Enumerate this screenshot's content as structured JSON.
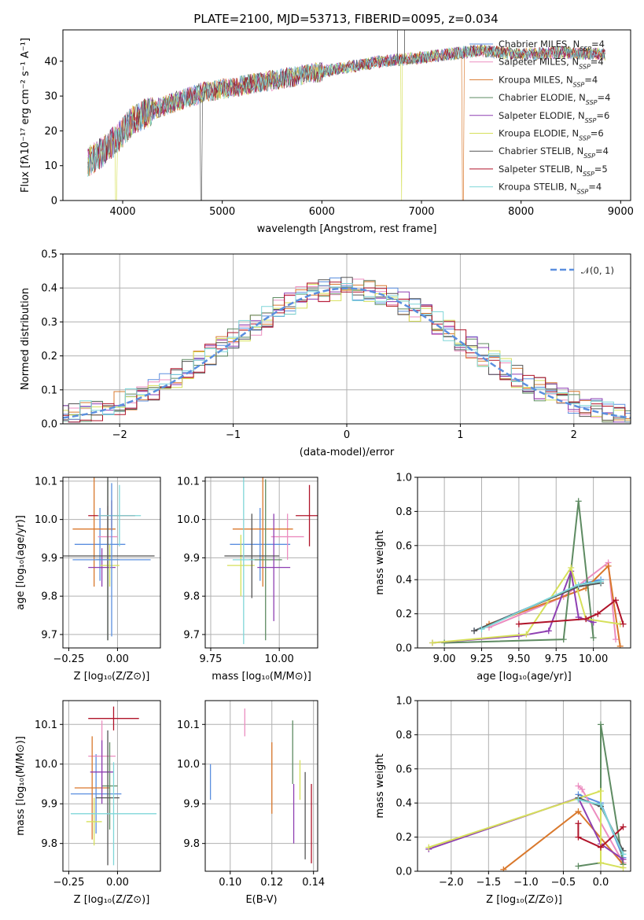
{
  "figure": {
    "title": "PLATE=2100, MJD=53713, FIBERID=0095, z=0.034"
  },
  "series_names": [
    {
      "name": "Chabrier MILES, N",
      "sub": "SSP",
      "eq": "=4",
      "color": "#5b8fdf"
    },
    {
      "name": "Salpeter MILES, N",
      "sub": "SSP",
      "eq": "=4",
      "color": "#ec8dc0"
    },
    {
      "name": "Kroupa MILES, N",
      "sub": "SSP",
      "eq": "=4",
      "color": "#d9782c"
    },
    {
      "name": "Chabrier ELODIE, N",
      "sub": "SSP",
      "eq": "=4",
      "color": "#5e8b62"
    },
    {
      "name": "Salpeter ELODIE, N",
      "sub": "SSP",
      "eq": "=6",
      "color": "#8e3fb2"
    },
    {
      "name": "Kroupa ELODIE, N",
      "sub": "SSP",
      "eq": "=6",
      "color": "#d6e05a"
    },
    {
      "name": "Chabrier STELIB, N",
      "sub": "SSP",
      "eq": "=4",
      "color": "#555555"
    },
    {
      "name": "Salpeter STELIB, N",
      "sub": "SSP",
      "eq": "=5",
      "color": "#b0142a"
    },
    {
      "name": "Kroupa STELIB, N",
      "sub": "SSP",
      "eq": "=4",
      "color": "#7fd6d8"
    }
  ],
  "chart_data": [
    {
      "id": "spectrum",
      "type": "line",
      "xlabel": "wavelength [Angstrom, rest frame]",
      "ylabel": "Flux [fλ10⁻¹⁷ erg cm⁻² s⁻¹ A⁻¹]",
      "xlim": [
        3400,
        9100
      ],
      "ylim": [
        0,
        49
      ],
      "xticks": [
        4000,
        5000,
        6000,
        7000,
        8000,
        9000
      ],
      "yticks": [
        0,
        10,
        20,
        30,
        40
      ],
      "continuum": [
        [
          3650,
          11
        ],
        [
          3800,
          14
        ],
        [
          3950,
          18
        ],
        [
          4100,
          23
        ],
        [
          4300,
          26
        ],
        [
          4500,
          28
        ],
        [
          4800,
          31
        ],
        [
          5000,
          32
        ],
        [
          5400,
          34
        ],
        [
          5800,
          36
        ],
        [
          6200,
          38
        ],
        [
          6600,
          40
        ],
        [
          7000,
          41
        ],
        [
          7400,
          42.5
        ],
        [
          7600,
          43
        ],
        [
          8000,
          42
        ],
        [
          8400,
          42.5
        ],
        [
          8800,
          42
        ]
      ],
      "dropouts": [
        [
          3930,
          "Kroupa ELODIE"
        ],
        [
          4790,
          "Chabrier STELIB"
        ],
        [
          6800,
          "Kroupa ELODIE"
        ],
        [
          7420,
          "Kroupa MILES"
        ]
      ],
      "legend": "right"
    },
    {
      "id": "residuals",
      "type": "histogram",
      "xlabel": "(data-model)/error",
      "ylabel": "Normed distribution",
      "xlim": [
        -2.5,
        2.5
      ],
      "ylim": [
        0,
        0.5
      ],
      "xticks": [
        -2,
        -1,
        0,
        1,
        2
      ],
      "yticks": [
        0.0,
        0.1,
        0.2,
        0.3,
        0.4,
        0.5
      ],
      "bin_width": 0.1,
      "reference": {
        "label": "𝒩(0, 1)",
        "mean": 0,
        "sigma": 1,
        "color": "#5b8fdf"
      },
      "legend": "upper-right"
    },
    {
      "id": "age_vs_Z",
      "type": "scatter",
      "xlabel": "Z [log₁₀(Z/Z⊙)]",
      "ylabel": "age  [log₁₀(age/yr)]",
      "xlim": [
        -0.28,
        0.22
      ],
      "ylim": [
        9.665,
        10.11
      ],
      "xticks": [
        -0.25,
        0.0
      ],
      "xtick_labels": [
        "−0.25",
        "0.00"
      ],
      "yticks": [
        9.7,
        9.8,
        9.9,
        10.0,
        10.1
      ],
      "points": [
        {
          "x": -0.09,
          "y": 9.935,
          "xerr": 0.13,
          "yerr": 0.095
        },
        {
          "x": -0.05,
          "y": 9.955,
          "xerr": 0.05,
          "yerr": 0.08
        },
        {
          "x": -0.12,
          "y": 9.975,
          "xerr": 0.11,
          "yerr": 0.15
        },
        {
          "x": -0.05,
          "y": 9.895,
          "xerr": 0.06,
          "yerr": 0.21
        },
        {
          "x": -0.08,
          "y": 9.875,
          "xerr": 0.07,
          "yerr": 0.05
        },
        {
          "x": -0.04,
          "y": 9.88,
          "xerr": 0.05,
          "yerr": 0.055
        },
        {
          "x": -0.05,
          "y": 9.905,
          "xerr": 0.24,
          "yerr": 0.22
        },
        {
          "x": -0.03,
          "y": 10.01,
          "xerr": 0.12,
          "yerr": 0.04
        },
        {
          "x": 0.01,
          "y": 10.01,
          "xerr": 0.11,
          "yerr": 0.08
        },
        {
          "x": -0.03,
          "y": 9.895,
          "xerr": 0.2,
          "yerr": 0.2
        }
      ]
    },
    {
      "id": "age_vs_mass",
      "type": "scatter",
      "xlabel": "mass [log₁₀(M/M⊙)]",
      "xlim": [
        9.73,
        10.14
      ],
      "ylim": [
        9.665,
        10.11
      ],
      "xticks": [
        9.75,
        10.0
      ],
      "xtick_labels": [
        "9.75",
        "10.00"
      ],
      "yticks": [
        9.7,
        9.8,
        9.9,
        10.0,
        10.1
      ],
      "points": [
        {
          "x": 9.93,
          "y": 9.935,
          "xerr": 0.11,
          "yerr": 0.095
        },
        {
          "x": 10.03,
          "y": 9.955,
          "xerr": 0.06,
          "yerr": 0.06
        },
        {
          "x": 9.94,
          "y": 9.975,
          "xerr": 0.11,
          "yerr": 0.15
        },
        {
          "x": 9.95,
          "y": 9.895,
          "xerr": 0.06,
          "yerr": 0.21
        },
        {
          "x": 9.98,
          "y": 9.875,
          "xerr": 0.06,
          "yerr": 0.14
        },
        {
          "x": 9.86,
          "y": 9.88,
          "xerr": 0.05,
          "yerr": 0.08
        },
        {
          "x": 9.9,
          "y": 9.905,
          "xerr": 0.1,
          "yerr": 0.11
        },
        {
          "x": 10.11,
          "y": 10.01,
          "xerr": 0.05,
          "yerr": 0.08
        },
        {
          "x": 9.87,
          "y": 9.895,
          "xerr": 0.04,
          "yerr": 0.22
        }
      ]
    },
    {
      "id": "weight_vs_age",
      "type": "line",
      "xlabel": "age  [log₁₀(age/yr)]",
      "ylabel": "mass weight",
      "xlim": [
        8.82,
        10.25
      ],
      "ylim": [
        0,
        1
      ],
      "xticks": [
        9.0,
        9.25,
        9.5,
        9.75,
        10.0
      ],
      "xtick_labels": [
        "9.00",
        "9.25",
        "9.50",
        "9.75",
        "10.00"
      ],
      "yticks": [
        0.0,
        0.2,
        0.4,
        0.6,
        0.8,
        1.0
      ],
      "series": [
        {
          "color": "#5b8fdf",
          "x": [
            9.2,
            9.95,
            10.05
          ],
          "y": [
            0.1,
            0.38,
            0.4
          ]
        },
        {
          "color": "#ec8dc0",
          "x": [
            9.3,
            9.8,
            10.1,
            10.15
          ],
          "y": [
            0.12,
            0.3,
            0.5,
            0.05
          ]
        },
        {
          "color": "#d9782c",
          "x": [
            9.3,
            9.95,
            10.1,
            10.18
          ],
          "y": [
            0.14,
            0.35,
            0.48,
            0.01
          ]
        },
        {
          "color": "#5e8b62",
          "x": [
            9.0,
            9.8,
            9.9,
            10.0
          ],
          "y": [
            0.03,
            0.05,
            0.86,
            0.06
          ]
        },
        {
          "color": "#8e3fb2",
          "x": [
            8.92,
            9.5,
            9.7,
            9.85,
            9.9,
            10.0
          ],
          "y": [
            0.03,
            0.07,
            0.1,
            0.45,
            0.18,
            0.15
          ]
        },
        {
          "color": "#d6e05a",
          "x": [
            8.92,
            9.55,
            9.85,
            9.95,
            10.18
          ],
          "y": [
            0.03,
            0.08,
            0.47,
            0.17,
            0.14
          ]
        },
        {
          "color": "#555555",
          "x": [
            9.2,
            9.9,
            10.05
          ],
          "y": [
            0.1,
            0.36,
            0.38
          ]
        },
        {
          "color": "#b0142a",
          "x": [
            9.5,
            9.95,
            10.03,
            10.15,
            10.2
          ],
          "y": [
            0.14,
            0.17,
            0.2,
            0.28,
            0.14
          ]
        },
        {
          "color": "#7fd6d8",
          "x": [
            9.25,
            9.9,
            10.05
          ],
          "y": [
            0.11,
            0.37,
            0.39
          ]
        }
      ]
    },
    {
      "id": "mass_vs_Z",
      "type": "scatter",
      "xlabel": "Z [log₁₀(Z/Z⊙)]",
      "ylabel": "mass [log₁₀(M/M⊙)]",
      "xlim": [
        -0.28,
        0.22
      ],
      "ylim": [
        9.73,
        10.16
      ],
      "xticks": [
        -0.25,
        0.0
      ],
      "xtick_labels": [
        "−0.25",
        "0.00"
      ],
      "yticks": [
        9.8,
        9.9,
        10.0,
        10.1
      ],
      "points": [
        {
          "x": -0.11,
          "y": 9.925,
          "xerr": 0.13,
          "yerr": 0.1
        },
        {
          "x": -0.08,
          "y": 10.02,
          "xerr": 0.07,
          "yerr": 0.09
        },
        {
          "x": -0.13,
          "y": 9.94,
          "xerr": 0.09,
          "yerr": 0.13
        },
        {
          "x": -0.04,
          "y": 9.945,
          "xerr": 0.04,
          "yerr": 0.11
        },
        {
          "x": -0.08,
          "y": 9.98,
          "xerr": 0.06,
          "yerr": 0.08
        },
        {
          "x": -0.12,
          "y": 9.855,
          "xerr": 0.04,
          "yerr": 0.06
        },
        {
          "x": -0.05,
          "y": 9.915,
          "xerr": 0.06,
          "yerr": 0.17
        },
        {
          "x": -0.02,
          "y": 10.115,
          "xerr": 0.13,
          "yerr": 0.03
        },
        {
          "x": -0.02,
          "y": 9.875,
          "xerr": 0.22,
          "yerr": 0.13
        }
      ]
    },
    {
      "id": "mass_vs_EBV",
      "type": "scatter",
      "xlabel": "E(B-V)",
      "xlim": [
        0.088,
        0.142
      ],
      "ylim": [
        9.73,
        10.16
      ],
      "xticks": [
        0.1,
        0.12,
        0.14
      ],
      "xtick_labels": [
        "0.10",
        "0.12",
        "0.14"
      ],
      "yticks": [
        9.8,
        9.9,
        10.0,
        10.1
      ],
      "points": [
        {
          "x": 0.0905,
          "y": 9.955,
          "yerr": 0.045
        },
        {
          "x": 0.107,
          "y": 10.105,
          "yerr": 0.035
        },
        {
          "x": 0.12,
          "y": 9.965,
          "yerr": 0.09
        },
        {
          "x": 0.13,
          "y": 10.03,
          "yerr": 0.08
        },
        {
          "x": 0.1305,
          "y": 9.875,
          "yerr": 0.075
        },
        {
          "x": 0.1335,
          "y": 9.96,
          "yerr": 0.05
        },
        {
          "x": 0.136,
          "y": 9.87,
          "yerr": 0.11
        },
        {
          "x": 0.139,
          "y": 9.85,
          "yerr": 0.1
        }
      ]
    },
    {
      "id": "weight_vs_Z",
      "type": "line",
      "xlabel": "Z [log₁₀(Z/Z⊙)]",
      "ylabel": "mass weight",
      "xlim": [
        -2.45,
        0.4
      ],
      "ylim": [
        0,
        1
      ],
      "xticks": [
        -2.0,
        -1.5,
        -1.0,
        -0.5,
        0.0
      ],
      "xtick_labels": [
        "−2.0",
        "−1.5",
        "−1.0",
        "−0.5",
        "0.0"
      ],
      "yticks": [
        0.0,
        0.2,
        0.4,
        0.6,
        0.8,
        1.0
      ],
      "series": [
        {
          "color": "#5b8fdf",
          "x": [
            -0.3,
            0.0,
            0.3
          ],
          "y": [
            0.45,
            0.4,
            0.08
          ]
        },
        {
          "color": "#ec8dc0",
          "x": [
            -0.3,
            -0.25,
            0.3
          ],
          "y": [
            0.5,
            0.48,
            0.05
          ]
        },
        {
          "color": "#d9782c",
          "x": [
            -1.3,
            -0.3,
            0.3
          ],
          "y": [
            0.01,
            0.35,
            0.04
          ]
        },
        {
          "color": "#5e8b62",
          "x": [
            -0.3,
            0.0,
            0.0,
            0.3
          ],
          "y": [
            0.03,
            0.05,
            0.86,
            0.04
          ]
        },
        {
          "color": "#8e3fb2",
          "x": [
            -2.3,
            -0.3,
            0.0,
            0.3
          ],
          "y": [
            0.13,
            0.43,
            0.16,
            0.07
          ]
        },
        {
          "color": "#d6e05a",
          "x": [
            -2.3,
            0.0,
            0.0,
            0.3
          ],
          "y": [
            0.14,
            0.47,
            0.05,
            0.02
          ]
        },
        {
          "color": "#555555",
          "x": [
            -0.3,
            0.0,
            0.3
          ],
          "y": [
            0.43,
            0.38,
            0.12
          ]
        },
        {
          "color": "#b0142a",
          "x": [
            -0.3,
            -0.3,
            0.0,
            0.3
          ],
          "y": [
            0.28,
            0.2,
            0.14,
            0.26
          ]
        },
        {
          "color": "#7fd6d8",
          "x": [
            -0.3,
            0.0,
            0.3
          ],
          "y": [
            0.42,
            0.39,
            0.1
          ]
        }
      ]
    }
  ]
}
